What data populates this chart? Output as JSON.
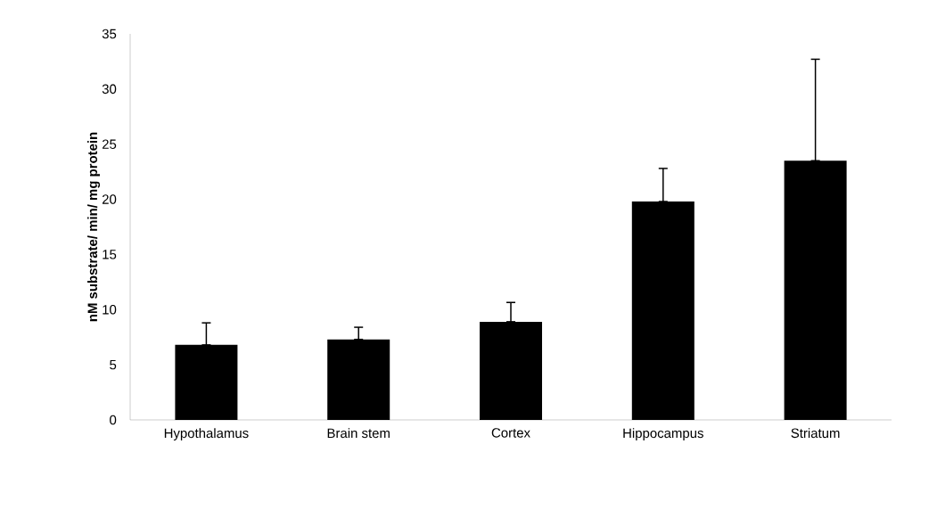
{
  "chart_data": {
    "type": "bar",
    "ylabel": "nM substrate/ min/ mg protein",
    "categories": [
      "Hypothalamus",
      "Brain stem",
      "Cortex",
      "Hippocampus",
      "Striatum"
    ],
    "values": [
      6.8,
      7.3,
      8.9,
      19.8,
      23.5
    ],
    "errors": [
      [
        6.8,
        8.8
      ],
      [
        7.3,
        8.4
      ],
      [
        8.9,
        10.65
      ],
      [
        19.8,
        22.8
      ],
      [
        23.5,
        32.7
      ]
    ],
    "color": "#000000",
    "ylim": [
      0,
      35
    ],
    "yticks": [
      0,
      5,
      10,
      15,
      20,
      25,
      30,
      35
    ],
    "grid": false
  }
}
